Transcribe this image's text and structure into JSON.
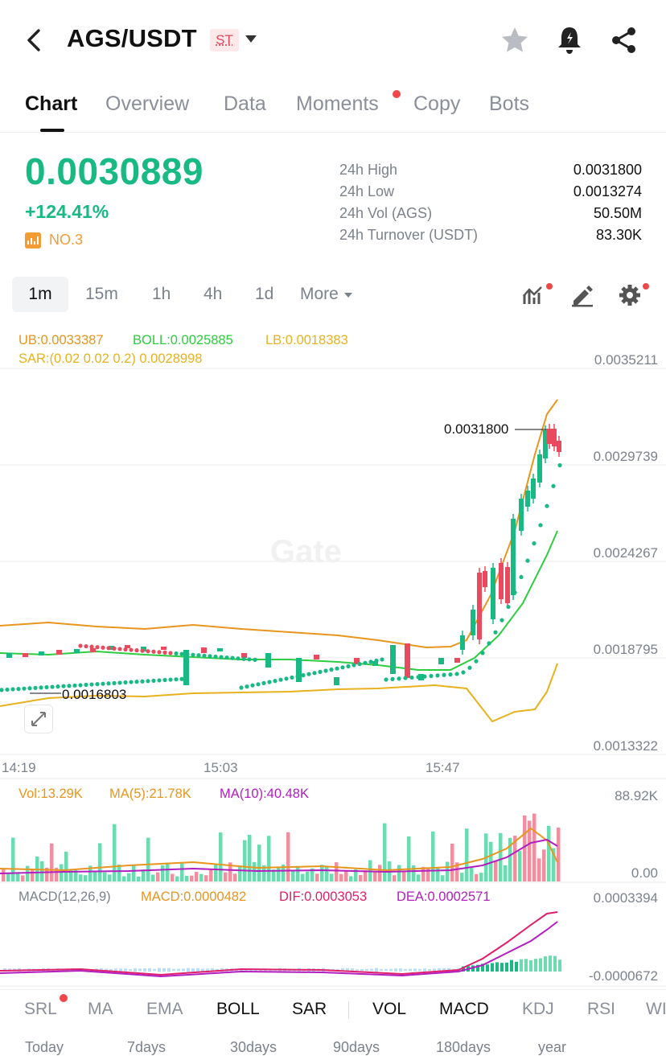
{
  "header": {
    "title": "AGS/USDT",
    "badge": "ST",
    "icons": [
      "back-icon",
      "chevron-down-icon",
      "star-icon",
      "alert-bell-icon",
      "share-icon"
    ]
  },
  "tabs": [
    {
      "label": "Chart",
      "active": true
    },
    {
      "label": "Overview"
    },
    {
      "label": "Data"
    },
    {
      "label": "Moments",
      "dot": true
    },
    {
      "label": "Copy"
    },
    {
      "label": "Bots"
    }
  ],
  "ticker": {
    "price": "0.0030889",
    "change": "+124.41%",
    "rank": "NO.3",
    "stats": [
      {
        "label": "24h High",
        "value": "0.0031800"
      },
      {
        "label": "24h Low",
        "value": "0.0013274"
      },
      {
        "label": "24h Vol (AGS)",
        "value": "50.50M"
      },
      {
        "label": "24h Turnover (USDT)",
        "value": "83.30K"
      }
    ]
  },
  "timeframes": {
    "items": [
      "1m",
      "15m",
      "1h",
      "4h",
      "1d"
    ],
    "active": "1m",
    "more": "More"
  },
  "main_chart": {
    "boll_ub": "UB:0.0033387",
    "boll_mid": "BOLL:0.0025885",
    "boll_lb": "LB:0.0018383",
    "sar": "SAR:(0.02 0.02 0.2) 0.0028998",
    "high_marker": "0.0031800",
    "low_marker": "0.0016803",
    "watermark": "Gate",
    "y_ticks": [
      "0.0035211",
      "0.0029739",
      "0.0024267",
      "0.0018795",
      "0.0013322"
    ],
    "x_ticks": [
      "14:19",
      "15:03",
      "15:47"
    ]
  },
  "volume_panel": {
    "vol": "Vol:13.29K",
    "ma5": "MA(5):21.78K",
    "ma10": "MA(10):40.48K",
    "y_max": "88.92K",
    "y_min": "0.00"
  },
  "macd_panel": {
    "params": "MACD(12,26,9)",
    "macd": "MACD:0.0000482",
    "dif": "DIF:0.0003053",
    "dea": "DEA:0.0002571",
    "y_max": "0.0003394",
    "y_min": "-0.0000672"
  },
  "indicator_tabs": [
    {
      "label": "SRL",
      "active": false,
      "dot": true
    },
    {
      "label": "MA",
      "active": false
    },
    {
      "label": "EMA",
      "active": false
    },
    {
      "label": "BOLL",
      "active": true
    },
    {
      "label": "SAR",
      "active": true
    },
    {
      "label": "VOL",
      "active": true
    },
    {
      "label": "MACD",
      "active": true
    },
    {
      "label": "KDJ",
      "active": false
    },
    {
      "label": "RSI",
      "active": false
    },
    {
      "label": "WI",
      "active": false
    }
  ],
  "ranges": [
    "Today",
    "7days",
    "30days",
    "90days",
    "180days",
    "year"
  ],
  "colors": {
    "up": "#18b983",
    "down": "#ea4a5e",
    "ub": "#e8951e",
    "boll": "#2ecc40",
    "lb": "#e8b21e",
    "sar": "#e8b21e",
    "ma5": "#e8951e",
    "ma10": "#b21ebf",
    "dif": "#e01e6a",
    "dea": "#b21ebf"
  },
  "chart_data": {
    "type": "candlestick",
    "note_series": "BOLL, SAR, VOL, MACD indicator panels",
    "y_range": [
      0.0013322,
      0.0035211
    ],
    "x": [
      "14:19",
      "15:03",
      "15:47"
    ],
    "high": 0.00318,
    "low": 0.0016803
  }
}
